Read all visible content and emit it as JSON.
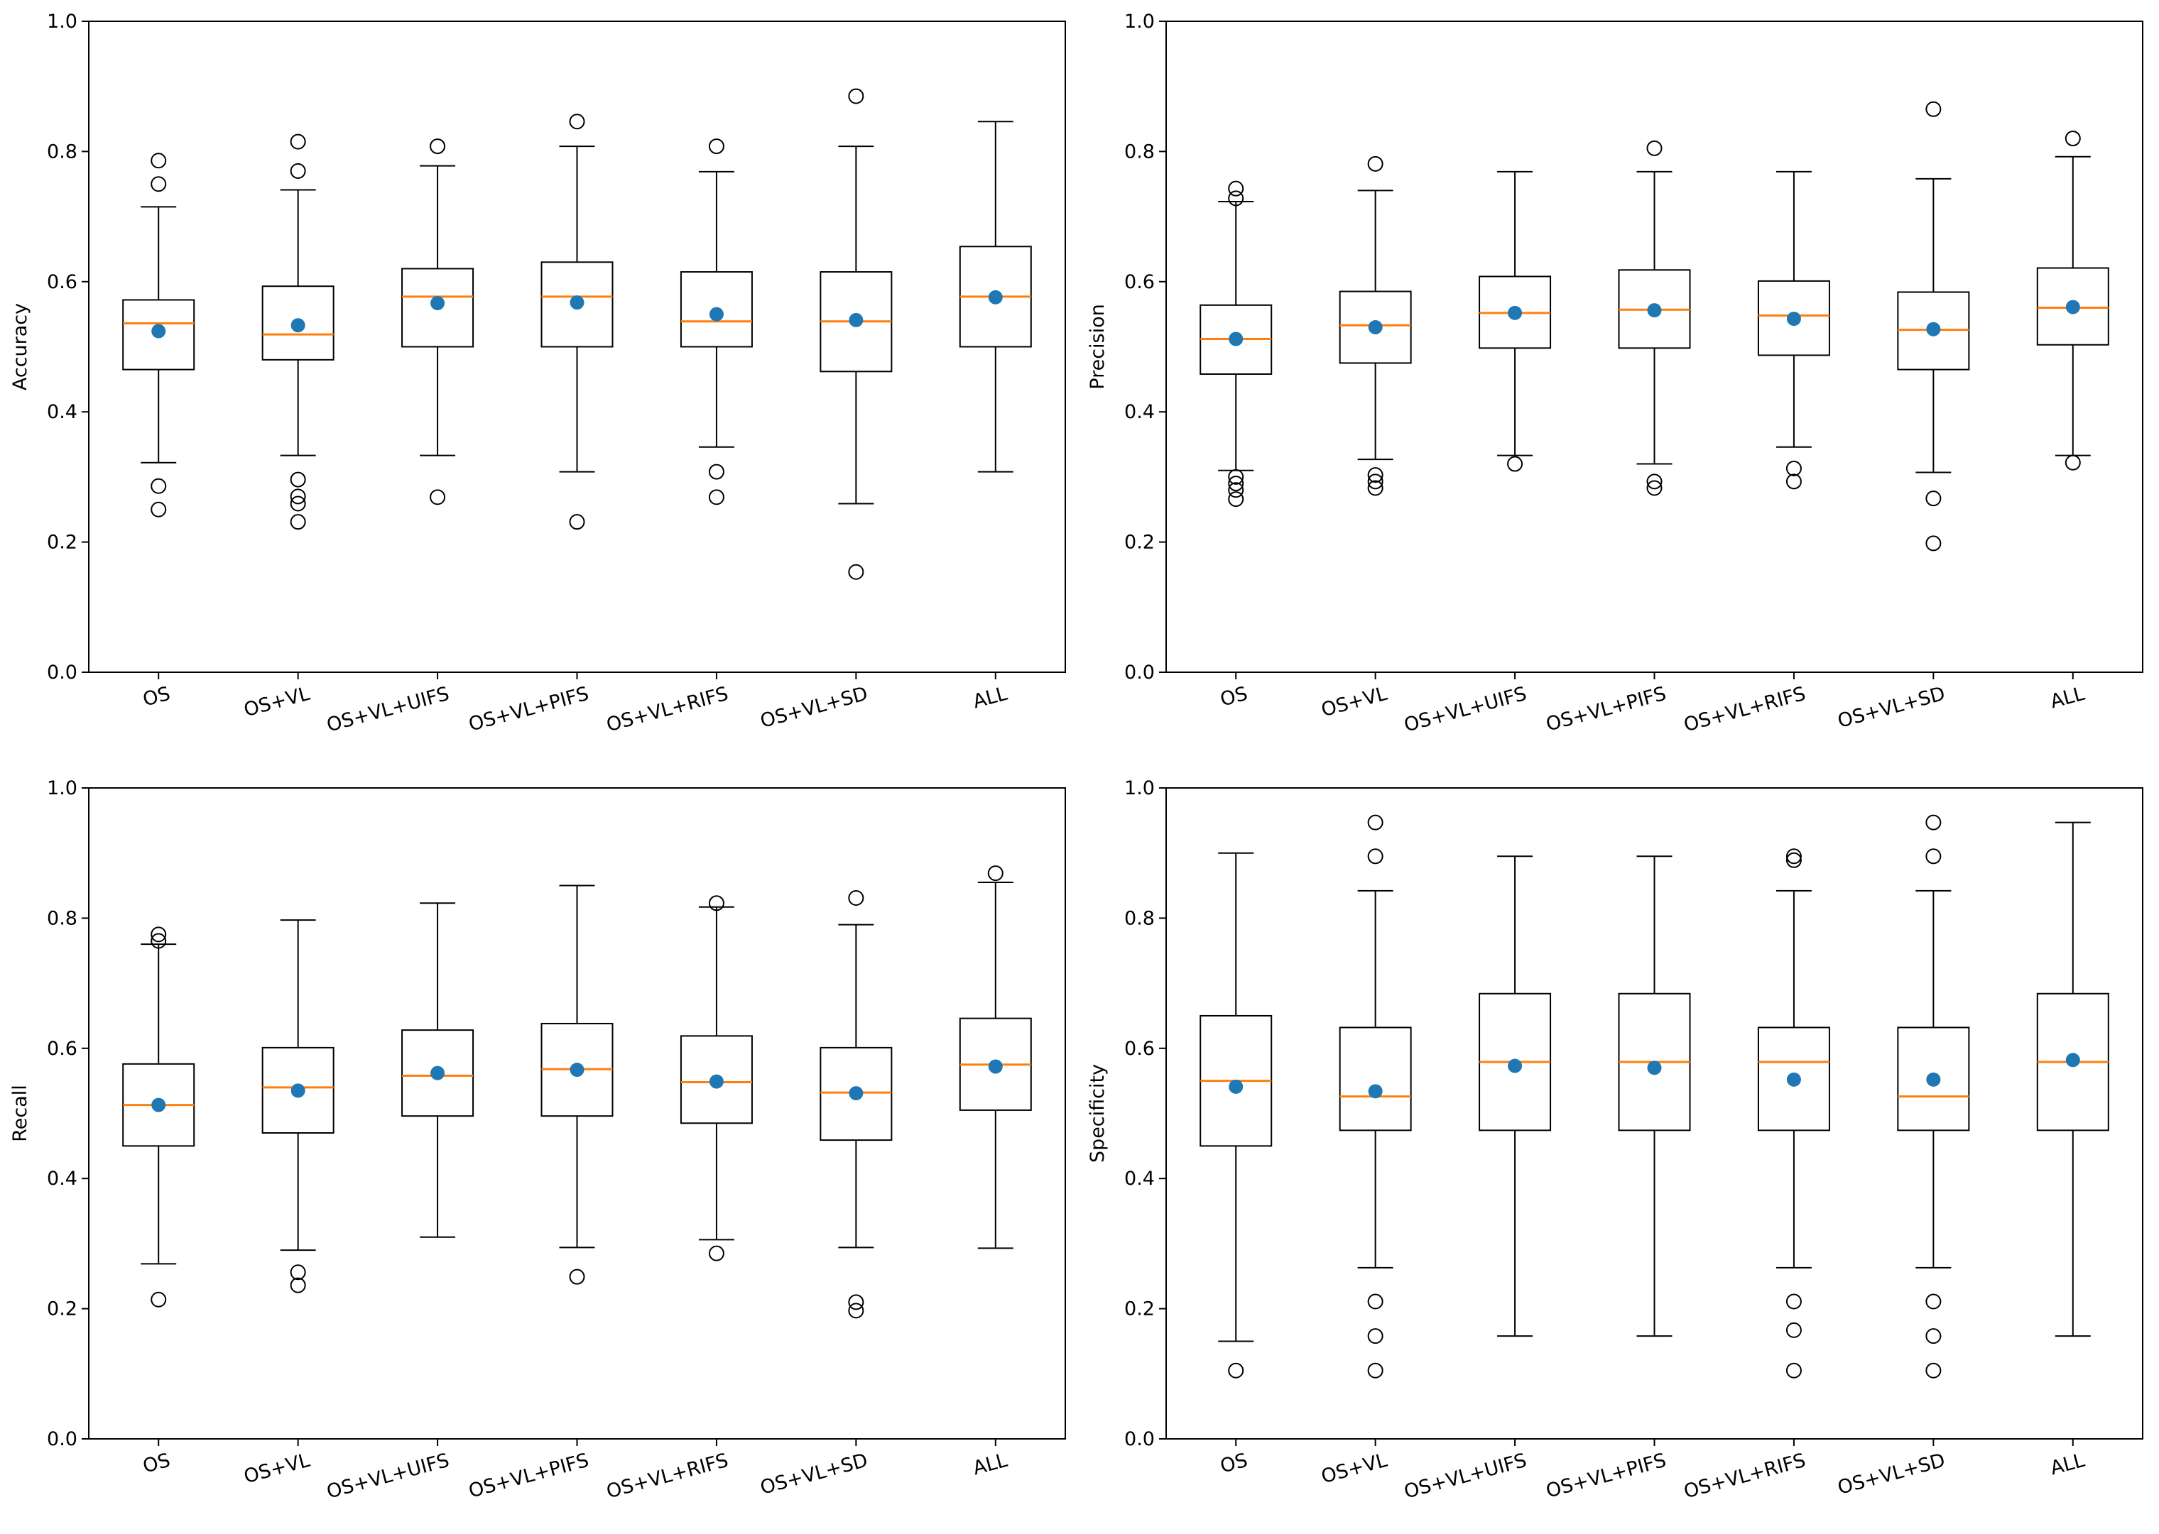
{
  "colors": {
    "median": "#ff7f0e",
    "mean": "#1f77b4",
    "box": "#000000"
  },
  "chart_data": [
    {
      "type": "box",
      "ylabel": "Accuracy",
      "ylim": [
        0,
        1
      ],
      "yticks": [
        "0.0",
        "0.2",
        "0.4",
        "0.6",
        "0.8",
        "1.0"
      ],
      "categories": [
        "OS",
        "OS+VL",
        "OS+VL+UIFS",
        "OS+VL+PIFS",
        "OS+VL+RIFS",
        "OS+VL+SD",
        "ALL"
      ],
      "boxes": [
        {
          "q1": 0.465,
          "median": 0.536,
          "q3": 0.572,
          "whislo": 0.322,
          "whishi": 0.715,
          "mean": 0.524,
          "fliers": [
            0.786,
            0.75,
            0.286,
            0.25
          ]
        },
        {
          "q1": 0.48,
          "median": 0.519,
          "q3": 0.593,
          "whislo": 0.333,
          "whishi": 0.741,
          "mean": 0.533,
          "fliers": [
            0.815,
            0.77,
            0.296,
            0.27,
            0.259,
            0.231
          ]
        },
        {
          "q1": 0.5,
          "median": 0.577,
          "q3": 0.62,
          "whislo": 0.333,
          "whishi": 0.778,
          "mean": 0.567,
          "fliers": [
            0.808,
            0.269
          ]
        },
        {
          "q1": 0.5,
          "median": 0.577,
          "q3": 0.63,
          "whislo": 0.308,
          "whishi": 0.808,
          "mean": 0.568,
          "fliers": [
            0.846,
            0.231
          ]
        },
        {
          "q1": 0.5,
          "median": 0.539,
          "q3": 0.615,
          "whislo": 0.346,
          "whishi": 0.769,
          "mean": 0.55,
          "fliers": [
            0.808,
            0.308,
            0.269
          ]
        },
        {
          "q1": 0.462,
          "median": 0.539,
          "q3": 0.615,
          "whislo": 0.259,
          "whishi": 0.808,
          "mean": 0.541,
          "fliers": [
            0.885,
            0.154
          ]
        },
        {
          "q1": 0.5,
          "median": 0.577,
          "q3": 0.654,
          "whislo": 0.308,
          "whishi": 0.846,
          "mean": 0.576,
          "fliers": []
        }
      ]
    },
    {
      "type": "box",
      "ylabel": "Precision",
      "ylim": [
        0,
        1
      ],
      "yticks": [
        "0.0",
        "0.2",
        "0.4",
        "0.6",
        "0.8",
        "1.0"
      ],
      "categories": [
        "OS",
        "OS+VL",
        "OS+VL+UIFS",
        "OS+VL+PIFS",
        "OS+VL+RIFS",
        "OS+VL+SD",
        "ALL"
      ],
      "boxes": [
        {
          "q1": 0.458,
          "median": 0.512,
          "q3": 0.564,
          "whislo": 0.31,
          "whishi": 0.723,
          "mean": 0.512,
          "fliers": [
            0.743,
            0.728,
            0.3,
            0.29,
            0.28,
            0.266
          ]
        },
        {
          "q1": 0.475,
          "median": 0.533,
          "q3": 0.585,
          "whislo": 0.327,
          "whishi": 0.74,
          "mean": 0.53,
          "fliers": [
            0.781,
            0.303,
            0.293,
            0.283
          ]
        },
        {
          "q1": 0.498,
          "median": 0.552,
          "q3": 0.608,
          "whislo": 0.333,
          "whishi": 0.769,
          "mean": 0.552,
          "fliers": [
            0.32
          ]
        },
        {
          "q1": 0.498,
          "median": 0.557,
          "q3": 0.618,
          "whislo": 0.32,
          "whishi": 0.769,
          "mean": 0.556,
          "fliers": [
            0.805,
            0.293,
            0.283
          ]
        },
        {
          "q1": 0.487,
          "median": 0.548,
          "q3": 0.601,
          "whislo": 0.346,
          "whishi": 0.769,
          "mean": 0.543,
          "fliers": [
            0.313,
            0.293
          ]
        },
        {
          "q1": 0.465,
          "median": 0.526,
          "q3": 0.584,
          "whislo": 0.307,
          "whishi": 0.758,
          "mean": 0.527,
          "fliers": [
            0.865,
            0.267,
            0.198
          ]
        },
        {
          "q1": 0.503,
          "median": 0.56,
          "q3": 0.621,
          "whislo": 0.333,
          "whishi": 0.792,
          "mean": 0.561,
          "fliers": [
            0.82,
            0.322
          ]
        }
      ]
    },
    {
      "type": "box",
      "ylabel": "Recall",
      "ylim": [
        0,
        1
      ],
      "yticks": [
        "0.0",
        "0.2",
        "0.4",
        "0.6",
        "0.8",
        "1.0"
      ],
      "categories": [
        "OS",
        "OS+VL",
        "OS+VL+UIFS",
        "OS+VL+PIFS",
        "OS+VL+RIFS",
        "OS+VL+SD",
        "ALL"
      ],
      "boxes": [
        {
          "q1": 0.45,
          "median": 0.513,
          "q3": 0.576,
          "whislo": 0.269,
          "whishi": 0.76,
          "mean": 0.513,
          "fliers": [
            0.775,
            0.765,
            0.214
          ]
        },
        {
          "q1": 0.47,
          "median": 0.54,
          "q3": 0.601,
          "whislo": 0.29,
          "whishi": 0.797,
          "mean": 0.535,
          "fliers": [
            0.256,
            0.236
          ]
        },
        {
          "q1": 0.496,
          "median": 0.558,
          "q3": 0.628,
          "whislo": 0.31,
          "whishi": 0.823,
          "mean": 0.562,
          "fliers": []
        },
        {
          "q1": 0.496,
          "median": 0.568,
          "q3": 0.638,
          "whislo": 0.294,
          "whishi": 0.85,
          "mean": 0.567,
          "fliers": [
            0.249
          ]
        },
        {
          "q1": 0.485,
          "median": 0.548,
          "q3": 0.619,
          "whislo": 0.306,
          "whishi": 0.817,
          "mean": 0.549,
          "fliers": [
            0.823,
            0.285
          ]
        },
        {
          "q1": 0.459,
          "median": 0.532,
          "q3": 0.601,
          "whislo": 0.294,
          "whishi": 0.79,
          "mean": 0.531,
          "fliers": [
            0.831,
            0.21,
            0.197
          ]
        },
        {
          "q1": 0.505,
          "median": 0.575,
          "q3": 0.646,
          "whislo": 0.293,
          "whishi": 0.855,
          "mean": 0.572,
          "fliers": [
            0.869
          ]
        }
      ]
    },
    {
      "type": "box",
      "ylabel": "Specificity",
      "ylim": [
        0,
        1
      ],
      "yticks": [
        "0.0",
        "0.2",
        "0.4",
        "0.6",
        "0.8",
        "1.0"
      ],
      "categories": [
        "OS",
        "OS+VL",
        "OS+VL+UIFS",
        "OS+VL+PIFS",
        "OS+VL+RIFS",
        "OS+VL+SD",
        "ALL"
      ],
      "boxes": [
        {
          "q1": 0.45,
          "median": 0.55,
          "q3": 0.65,
          "whislo": 0.15,
          "whishi": 0.9,
          "mean": 0.541,
          "fliers": [
            0.105
          ]
        },
        {
          "q1": 0.474,
          "median": 0.526,
          "q3": 0.632,
          "whislo": 0.263,
          "whishi": 0.842,
          "mean": 0.534,
          "fliers": [
            0.947,
            0.895,
            0.211,
            0.158,
            0.105
          ]
        },
        {
          "q1": 0.474,
          "median": 0.579,
          "q3": 0.684,
          "whislo": 0.158,
          "whishi": 0.895,
          "mean": 0.573,
          "fliers": []
        },
        {
          "q1": 0.474,
          "median": 0.579,
          "q3": 0.684,
          "whislo": 0.158,
          "whishi": 0.895,
          "mean": 0.57,
          "fliers": []
        },
        {
          "q1": 0.474,
          "median": 0.579,
          "q3": 0.632,
          "whislo": 0.263,
          "whishi": 0.842,
          "mean": 0.552,
          "fliers": [
            0.895,
            0.889,
            0.211,
            0.167,
            0.105
          ]
        },
        {
          "q1": 0.474,
          "median": 0.526,
          "q3": 0.632,
          "whislo": 0.263,
          "whishi": 0.842,
          "mean": 0.552,
          "fliers": [
            0.947,
            0.895,
            0.211,
            0.158,
            0.105
          ]
        },
        {
          "q1": 0.474,
          "median": 0.579,
          "q3": 0.684,
          "whislo": 0.158,
          "whishi": 0.947,
          "mean": 0.582,
          "fliers": []
        }
      ]
    }
  ]
}
